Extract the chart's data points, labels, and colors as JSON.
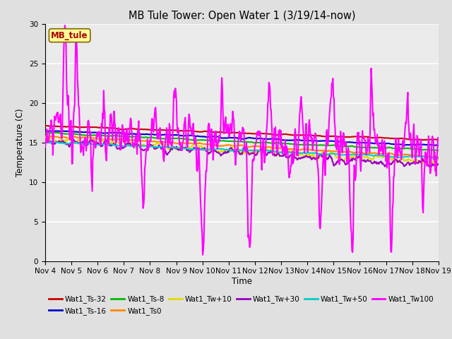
{
  "title": "MB Tule Tower: Open Water 1 (3/19/14-now)",
  "xlabel": "Time",
  "ylabel": "Temperature (C)",
  "ylim": [
    0,
    30
  ],
  "yticks": [
    0,
    5,
    10,
    15,
    20,
    25,
    30
  ],
  "xtick_labels": [
    "Nov 4",
    "Nov 5",
    "Nov 6",
    "Nov 7",
    "Nov 8",
    "Nov 9",
    "Nov 10",
    "Nov 11",
    "Nov 12",
    "Nov 13",
    "Nov 14",
    "Nov 15",
    "Nov 16",
    "Nov 17",
    "Nov 18",
    "Nov 19"
  ],
  "bg_color": "#e0e0e0",
  "plot_bg_color": "#ebebeb",
  "annotation_label": "MB_tule",
  "annotation_color": "#aa0000",
  "annotation_bg": "#ffff99",
  "series": {
    "Wat1_Ts-32": {
      "color": "#cc0000",
      "lw": 1.5
    },
    "Wat1_Ts-16": {
      "color": "#0000cc",
      "lw": 1.5
    },
    "Wat1_Ts-8": {
      "color": "#00bb00",
      "lw": 1.5
    },
    "Wat1_Ts0": {
      "color": "#ff8800",
      "lw": 1.5
    },
    "Wat1_Tw+10": {
      "color": "#dddd00",
      "lw": 1.5
    },
    "Wat1_Tw+30": {
      "color": "#9900bb",
      "lw": 1.5
    },
    "Wat1_Tw+50": {
      "color": "#00cccc",
      "lw": 1.5
    },
    "Wat1_Tw100": {
      "color": "#ff00ff",
      "lw": 1.5
    }
  }
}
